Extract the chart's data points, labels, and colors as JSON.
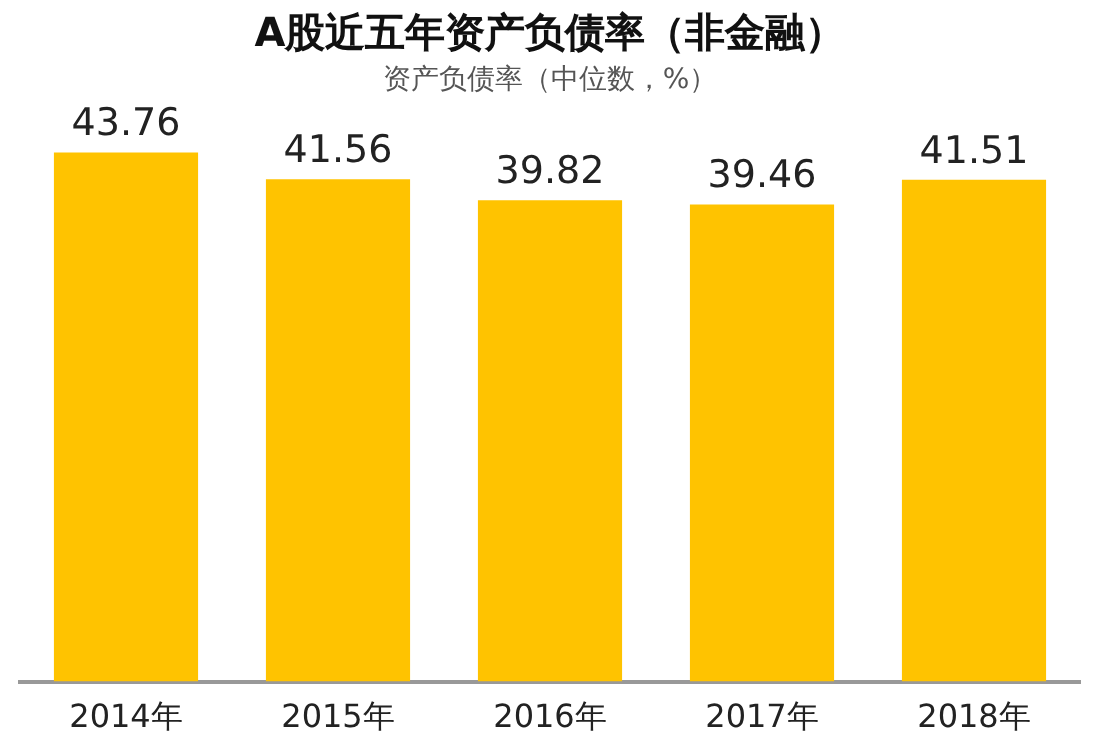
{
  "chart_data": {
    "type": "bar",
    "title": "A股近五年资产负债率（非金融）",
    "subtitle": "资产负债率（中位数，%）",
    "categories": [
      "2014年",
      "2015年",
      "2016年",
      "2017年",
      "2018年"
    ],
    "values": [
      43.76,
      41.56,
      39.82,
      39.46,
      41.51
    ],
    "color": "#ffc300",
    "data_labels": true,
    "grid": false,
    "legend": false,
    "tick_labels": "x"
  }
}
